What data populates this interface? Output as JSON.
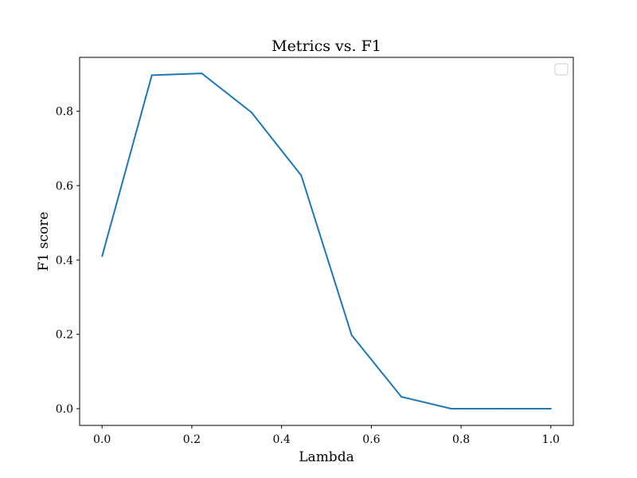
{
  "chart_data": {
    "type": "line",
    "title": "Metrics vs. F1",
    "xlabel": "Lambda",
    "ylabel": "F1 score",
    "xlim": [
      -0.05,
      1.05
    ],
    "ylim": [
      -0.045,
      0.945
    ],
    "xticks": [
      "0.0",
      "0.2",
      "0.4",
      "0.6",
      "0.8",
      "1.0"
    ],
    "yticks": [
      "0.0",
      "0.2",
      "0.4",
      "0.6",
      "0.8"
    ],
    "grid": false,
    "legend": "top-right",
    "colors": {
      "series": "#1f77b4"
    },
    "series": [
      {
        "x": [
          0.0,
          0.111,
          0.222,
          0.333,
          0.444,
          0.556,
          0.667,
          0.778,
          0.889,
          1.0
        ],
        "values": [
          0.41,
          0.897,
          0.902,
          0.797,
          0.627,
          0.198,
          0.032,
          0.0,
          0.0,
          0.0
        ]
      }
    ]
  }
}
